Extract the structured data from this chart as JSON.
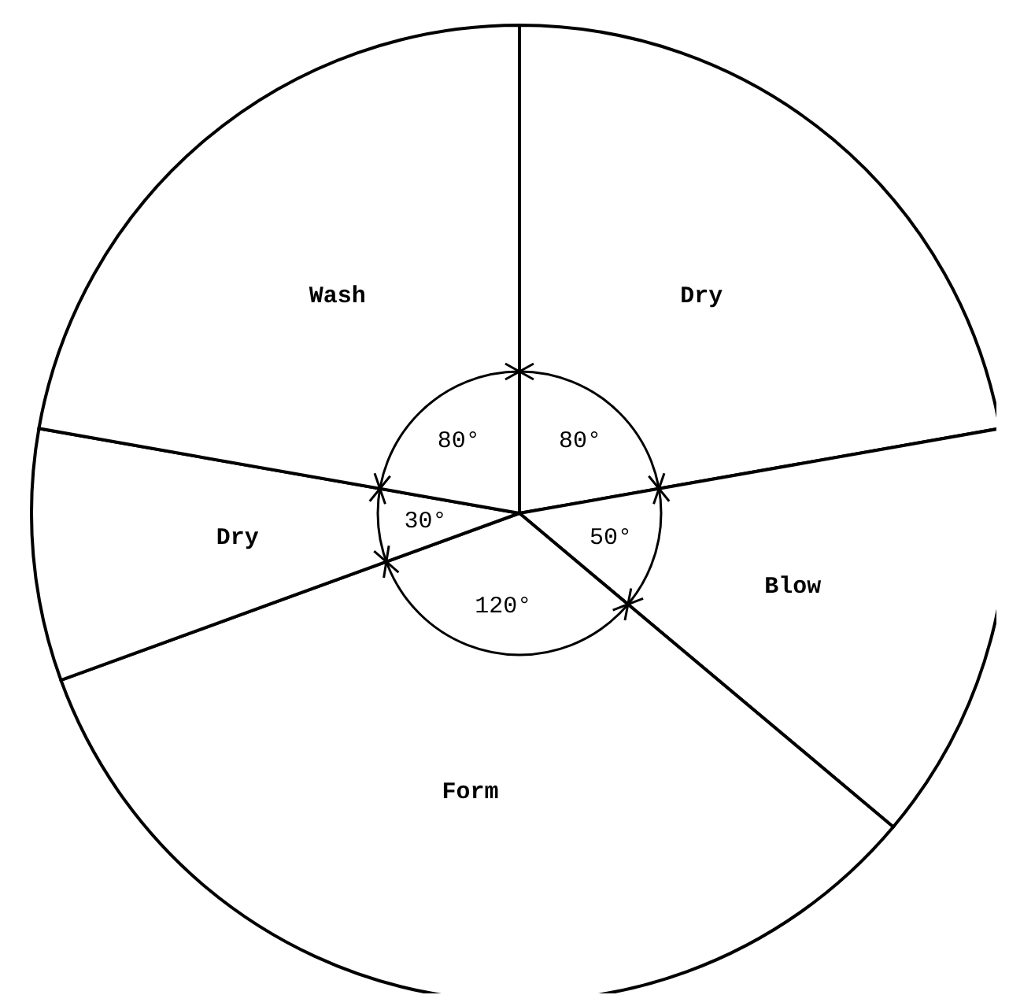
{
  "chart_data": {
    "type": "pie",
    "categories": [
      "Dry",
      "Blow",
      "Form",
      "Dry",
      "Wash"
    ],
    "values": [
      80,
      50,
      120,
      30,
      80
    ],
    "value_labels": [
      "80°",
      "50°",
      "120°",
      "30°",
      "80°"
    ],
    "colors": [
      "#ffffff",
      "#ffffff",
      "#ffffff",
      "#ffffff",
      "#ffffff"
    ]
  }
}
